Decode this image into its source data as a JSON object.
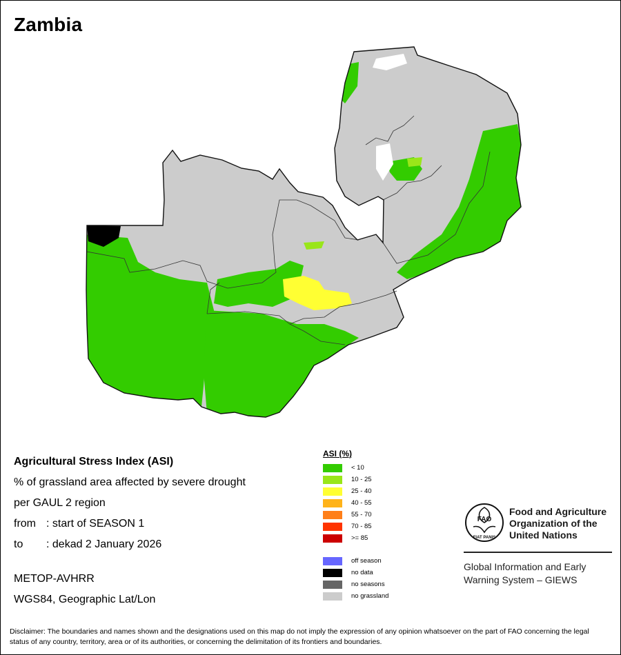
{
  "map": {
    "title": "Zambia",
    "colors": {
      "no_grassland": "#cccccc",
      "lt10": "#33cc00",
      "r10_25": "#99e619",
      "r25_40": "#ffff33",
      "no_data": "#000000"
    }
  },
  "info": {
    "line1": "Agricultural Stress Index (ASI)",
    "line2": "% of grassland area affected by severe drought",
    "line3": "per GAUL 2 region",
    "from_label": "from",
    "from_value": ": start of SEASON 1",
    "to_label": "to",
    "to_value": ": dekad 2 January 2026",
    "sensor": "METOP-AVHRR",
    "projection": "WGS84, Geographic Lat/Lon"
  },
  "legend": {
    "title": "ASI (%)",
    "classes": [
      {
        "label": "< 10",
        "color": "#33cc00"
      },
      {
        "label": "10 - 25",
        "color": "#99e619"
      },
      {
        "label": "25 - 40",
        "color": "#ffff33"
      },
      {
        "label": "40 - 55",
        "color": "#ffb319"
      },
      {
        "label": "55 - 70",
        "color": "#ff7f19"
      },
      {
        "label": "70 - 85",
        "color": "#ff3300"
      },
      {
        "label": ">= 85",
        "color": "#cc0000"
      }
    ],
    "special": [
      {
        "label": "off season",
        "color": "#6666ff"
      },
      {
        "label": "no data",
        "color": "#000000"
      },
      {
        "label": "no seasons",
        "color": "#666666"
      },
      {
        "label": "no grassland",
        "color": "#cccccc"
      }
    ]
  },
  "org": {
    "logo_letters": "FAO",
    "logo_motto": "FIAT PANIS",
    "name_line1": "Food and Agriculture",
    "name_line2": "Organization of the",
    "name_line3": "United Nations",
    "giews_line1": "Global Information and Early",
    "giews_line2": "Warning System – GIEWS"
  },
  "disclaimer": "Disclaimer: The boundaries and names shown and the designations used on this map do not imply the expression of any opinion whatsoever on the part of FAO concerning the legal status of any country, territory, area or of its authorities, or concerning the delimitation of its frontiers and boundaries."
}
